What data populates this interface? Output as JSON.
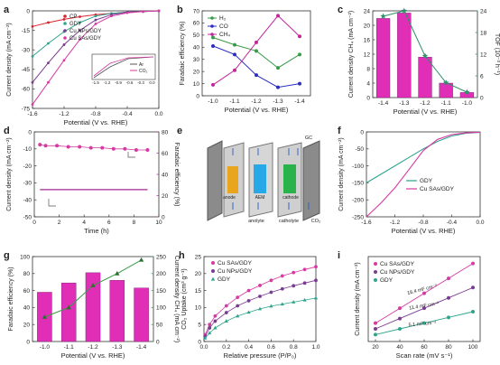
{
  "panels": {
    "a": {
      "letter": "a",
      "xlabel": "Potential (V vs. RHE)",
      "ylabel": "Current density (mA cm⁻²)",
      "xticks": [
        "-1.6",
        "-1.2",
        "-0.8",
        "-0.4",
        "0.0"
      ],
      "yticks": [
        "0",
        "-15",
        "-30",
        "-45",
        "-60",
        "-75"
      ],
      "legend": [
        "CP",
        "GDY",
        "Cu NPs/GDY",
        "Cu SAs/GDY"
      ],
      "inset_legend": [
        "Ar",
        "CO₂"
      ],
      "inset_xticks": [
        "-1.5",
        "-1.2",
        "-0.9",
        "-0.6",
        "-0.3",
        "0.0"
      ]
    },
    "b": {
      "letter": "b",
      "xlabel": "Potential (V vs. RHE)",
      "ylabel": "Faradaic efficiency (%)",
      "xticks": [
        "-1.0",
        "-1.1",
        "-1.2",
        "-1.3",
        "-1.4"
      ],
      "yticks": [
        "0",
        "10",
        "20",
        "30",
        "40",
        "50",
        "60",
        "70"
      ],
      "legend": [
        "H₂",
        "CO",
        "CH₄"
      ]
    },
    "c": {
      "letter": "c",
      "xlabel": "Potential (V vs. RHE)",
      "ylabel": "Current density CH₄ (mA cm⁻²)",
      "y2label": "TOF (10⁻³ h⁻¹)",
      "xticks": [
        "-1.4",
        "-1.3",
        "-1.2",
        "-1.1",
        "-1.0"
      ],
      "yticks": [
        "0",
        "4",
        "8",
        "12",
        "16",
        "20",
        "24"
      ],
      "y2ticks": [
        "0",
        "6",
        "12",
        "18",
        "24"
      ]
    },
    "d": {
      "letter": "d",
      "xlabel": "Time (h)",
      "ylabel": "Current density (mA cm⁻²)",
      "y2label": "Faradaic efficiency (%)",
      "xticks": [
        "0",
        "2",
        "4",
        "6",
        "8",
        "10"
      ],
      "yticks": [
        "0",
        "-10",
        "-20",
        "-30",
        "-40",
        "-50"
      ],
      "y2ticks": [
        "0",
        "20",
        "40",
        "60",
        "80"
      ]
    },
    "e": {
      "letter": "e",
      "labels": [
        "GC",
        "anode",
        "AEM",
        "cathode",
        "anolyte",
        "catholyte",
        "CO₂"
      ]
    },
    "f": {
      "letter": "f",
      "xlabel": "Potential (V vs. RHE)",
      "ylabel": "Current density (mA cm⁻²)",
      "xticks": [
        "-1.6",
        "-1.2",
        "-0.8",
        "-0.4",
        "0.0"
      ],
      "yticks": [
        "0",
        "-50",
        "-100",
        "-150",
        "-200",
        "-250"
      ],
      "legend": [
        "GDY",
        "Cu SAs/GDY"
      ]
    },
    "g": {
      "letter": "g",
      "xlabel": "Potential (V vs. RHE)",
      "ylabel": "Faradaic efficiency (%)",
      "y2label": "Current density CH₄ (mA cm⁻²)",
      "xticks": [
        "-1.0",
        "-1.1",
        "-1.2",
        "-1.3",
        "-1.4"
      ],
      "yticks": [
        "0",
        "20",
        "40",
        "60",
        "80",
        "100"
      ],
      "y2ticks": [
        "0",
        "50",
        "100",
        "150",
        "200",
        "250"
      ]
    },
    "h": {
      "letter": "h",
      "xlabel": "Relative pressure (P/P₀)",
      "ylabel": "CO₂ Uptake (cm³ g⁻¹)",
      "xticks": [
        "0.0",
        "0.2",
        "0.4",
        "0.6",
        "0.8",
        "1.0"
      ],
      "yticks": [
        "0",
        "5",
        "10",
        "15",
        "20",
        "25"
      ],
      "legend": [
        "Cu SAs/GDY",
        "Cu NPs/GDY",
        "GDY"
      ]
    },
    "i": {
      "letter": "i",
      "xlabel": "Scan rate (mV s⁻¹)",
      "ylabel": "Current density (mA cm⁻²)",
      "xticks": [
        "20",
        "40",
        "60",
        "80",
        "100"
      ],
      "legend": [
        "Cu SAs/GDY",
        "Cu NPs/GDY",
        "GDY"
      ],
      "slopes": [
        "16.4 mF cm⁻²",
        "11.4 mF cm⁻²",
        "5.1 mF cm⁻²"
      ]
    }
  },
  "colors": {
    "CP": "#d5262f",
    "GDY": "#2fa48c",
    "CuNPs": "#7a3c90",
    "CuSAs": "#d63aa3",
    "H2": "#3a9a48",
    "CO": "#2a2fbe",
    "CH4": "#c2279a",
    "bar": "#e02fb6",
    "tof": "#2f8f6c",
    "dataline": "#a02a90"
  },
  "chart_data": [
    {
      "panel": "a",
      "type": "line",
      "x": [
        -1.6,
        -1.4,
        -1.2,
        -1.0,
        -0.8,
        -0.6,
        -0.4,
        -0.2,
        0.0
      ],
      "series": [
        {
          "name": "CP",
          "values": [
            -12,
            -9,
            -6.5,
            -4.5,
            -3,
            -2,
            -1,
            -0.5,
            0
          ]
        },
        {
          "name": "GDY",
          "values": [
            -35,
            -25,
            -16,
            -9,
            -4,
            -2,
            -1,
            -0.5,
            0
          ]
        },
        {
          "name": "Cu NPs/GDY",
          "values": [
            -55,
            -40,
            -26,
            -15,
            -7,
            -3,
            -1,
            -0.5,
            0
          ]
        },
        {
          "name": "Cu SAs/GDY",
          "values": [
            -72,
            -55,
            -38,
            -22,
            -10,
            -4,
            -1.5,
            -0.5,
            0
          ]
        }
      ],
      "ylim": [
        -75,
        0
      ],
      "xlim": [
        -1.6,
        0.0
      ]
    },
    {
      "panel": "b",
      "type": "line",
      "categories": [
        "-1.0",
        "-1.1",
        "-1.2",
        "-1.3",
        "-1.4"
      ],
      "series": [
        {
          "name": "H₂",
          "values": [
            48,
            42,
            37,
            23,
            34
          ]
        },
        {
          "name": "CO",
          "values": [
            41,
            34,
            17,
            7,
            10
          ]
        },
        {
          "name": "CH₄",
          "values": [
            9,
            21,
            44,
            66,
            49
          ]
        }
      ],
      "ylim": [
        0,
        70
      ]
    },
    {
      "panel": "c",
      "type": "bar",
      "categories": [
        "-1.4",
        "-1.3",
        "-1.2",
        "-1.1",
        "-1.0"
      ],
      "series": [
        {
          "values": [
            21.9,
            23.4,
            11.2,
            4.0,
            1.4
          ]
        },
        {
          "values": [
            22.5,
            24.0,
            11.5,
            4.1,
            1.5
          ]
        }
      ],
      "ylim": [
        0,
        24
      ],
      "y2lim": [
        0,
        24
      ]
    },
    {
      "panel": "d",
      "type": "line",
      "x": [
        0.5,
        1,
        2,
        3,
        4,
        5,
        6,
        7,
        8,
        9,
        10
      ],
      "series": [
        {
          "values": [
            -34,
            -34,
            -34,
            -34,
            -34,
            -34,
            -34,
            -34,
            -34,
            -34,
            -34
          ]
        },
        {
          "values": [
            68,
            67,
            67,
            66,
            66,
            65,
            65,
            64,
            64,
            63,
            63
          ]
        }
      ],
      "ylim": [
        -50,
        0
      ],
      "y2lim": [
        0,
        80
      ]
    },
    {
      "panel": "f",
      "type": "line",
      "x": [
        -1.6,
        -1.4,
        -1.2,
        -1.0,
        -0.8,
        -0.6,
        -0.4,
        -0.2,
        0.0
      ],
      "series": [
        {
          "name": "GDY",
          "values": [
            -150,
            -125,
            -100,
            -75,
            -50,
            -28,
            -12,
            -4,
            -1
          ]
        },
        {
          "name": "Cu SAs/GDY",
          "values": [
            -250,
            -210,
            -165,
            -110,
            -55,
            -22,
            -8,
            -3,
            -1
          ]
        }
      ],
      "ylim": [
        -250,
        0
      ]
    },
    {
      "panel": "g",
      "type": "bar",
      "categories": [
        "-1.0",
        "-1.1",
        "-1.2",
        "-1.3",
        "-1.4"
      ],
      "series": [
        {
          "values": [
            58,
            69,
            81,
            72,
            63
          ]
        },
        {
          "values": [
            72,
            100,
            165,
            200,
            240
          ]
        }
      ],
      "ylim": [
        0,
        100
      ],
      "y2lim": [
        0,
        250
      ]
    },
    {
      "panel": "h",
      "type": "scatter",
      "x": [
        0.01,
        0.05,
        0.1,
        0.2,
        0.3,
        0.4,
        0.5,
        0.6,
        0.7,
        0.8,
        0.9,
        1.0
      ],
      "series": [
        {
          "name": "Cu SAs/GDY",
          "values": [
            2,
            5,
            7.5,
            10.5,
            13,
            15,
            16.5,
            18,
            19.3,
            20.3,
            21.2,
            22
          ]
        },
        {
          "name": "Cu NPs/GDY",
          "values": [
            1.5,
            4,
            6,
            8.5,
            10.5,
            12,
            13.3,
            14.5,
            15.5,
            16.4,
            17.2,
            18
          ]
        },
        {
          "name": "GDY",
          "values": [
            1,
            2.5,
            4,
            6,
            7.5,
            8.6,
            9.6,
            10.4,
            11,
            11.6,
            12.2,
            12.8
          ]
        }
      ],
      "ylim": [
        0,
        25
      ],
      "xlim": [
        0,
        1
      ]
    },
    {
      "panel": "i",
      "type": "scatter",
      "x": [
        20,
        40,
        60,
        80,
        100
      ],
      "series": [
        {
          "name": "Cu SAs/GDY",
          "values": [
            0.8,
            1.45,
            2.1,
            2.75,
            3.4
          ]
        },
        {
          "name": "Cu NPs/GDY",
          "values": [
            0.55,
            1.0,
            1.45,
            1.9,
            2.35
          ]
        },
        {
          "name": "GDY",
          "values": [
            0.3,
            0.55,
            0.8,
            1.05,
            1.3
          ]
        }
      ]
    }
  ]
}
